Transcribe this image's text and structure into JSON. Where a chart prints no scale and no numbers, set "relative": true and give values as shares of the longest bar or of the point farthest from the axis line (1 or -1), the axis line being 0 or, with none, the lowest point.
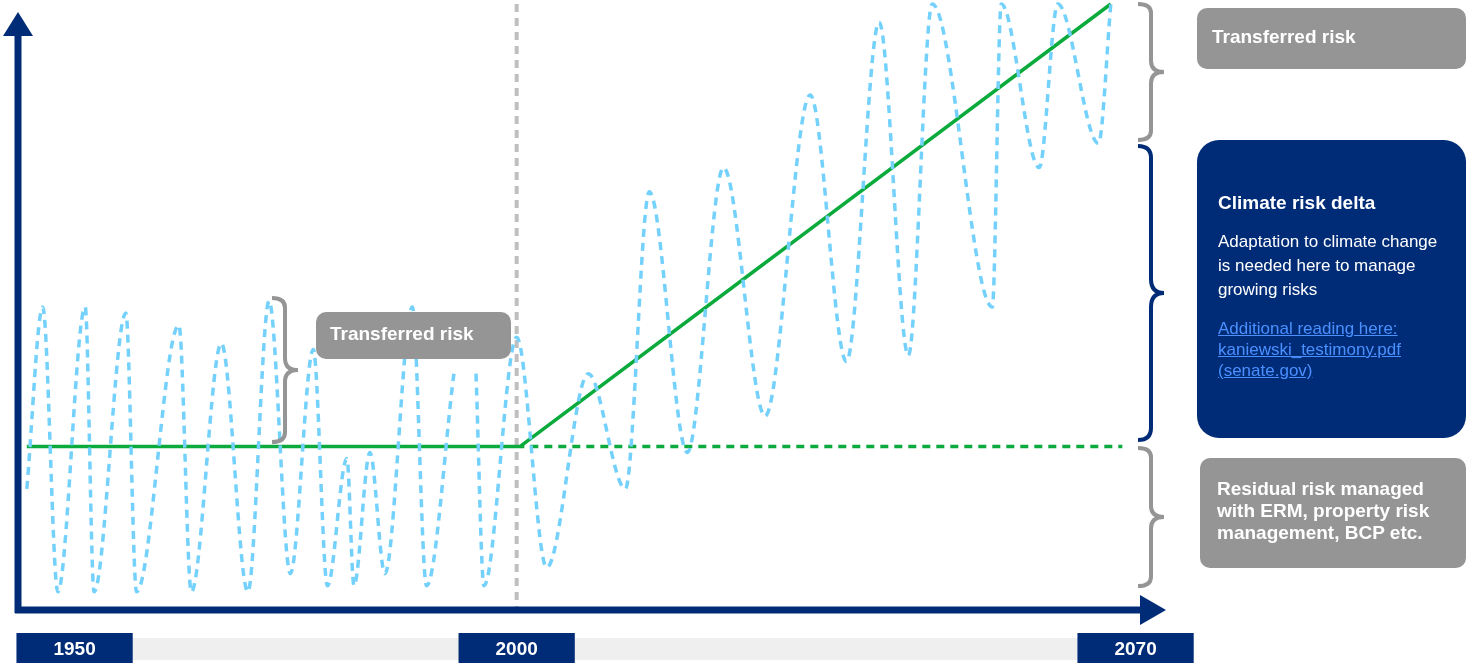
{
  "chart_data": {
    "type": "line",
    "relative": true,
    "xlim": [
      1943.6,
      2070.5
    ],
    "xticks": [
      1950,
      2000,
      2070
    ],
    "grid": false,
    "legend": false,
    "marker": "none",
    "series": [
      {
        "color": "#74d1fb",
        "line_style": "dashed",
        "x": [
          1944.6,
          1946.4,
          1948.1,
          1951.2,
          1952.2,
          1955.8,
          1957.0,
          1961.8,
          1963.2,
          1966.6,
          1969.6,
          1972.0,
          1974.4,
          1977.0,
          1978.6,
          1980.8,
          1981.6,
          1983.4,
          1985.1,
          1988.2,
          1989.8,
          1992.9,
          1994.5,
          1995.4,
          1996.3,
          2000.0,
          2003.4,
          2008.1,
          2012.3,
          2015.0,
          2019.3,
          2023.4,
          2028.1,
          2033.2,
          2037.3,
          2041.0,
          2044.3,
          2047.0,
          2053.8,
          2054.8,
          2059.1,
          2061.2,
          2065.8,
          2067.2
        ],
        "values": [
          0.2,
          0.5,
          0.03,
          0.5,
          0.03,
          0.49,
          0.03,
          0.47,
          0.03,
          0.44,
          0.03,
          0.51,
          0.06,
          0.43,
          0.04,
          0.25,
          0.04,
          0.26,
          0.06,
          0.5,
          0.04,
          0.39,
          null,
          0.39,
          0.04,
          0.45,
          0.07,
          0.39,
          0.2,
          0.69,
          0.26,
          0.73,
          0.32,
          0.85,
          0.41,
          0.97,
          0.42,
          1,
          0.5,
          1,
          0.73,
          1,
          0.77,
          1
        ]
      },
      {
        "color": "#0aaa3c",
        "line_style": "solid",
        "x": [
          1944.6,
          2000.4,
          2067.2
        ],
        "values": [
          0.27,
          0.27,
          1
        ]
      },
      {
        "color": "#0aaa3c",
        "line_style": "dashed",
        "x": [
          2000.4,
          2068.5
        ],
        "values": [
          0.27,
          0.27
        ]
      }
    ],
    "ref_lines": [
      {
        "axis": "x",
        "value": 2000,
        "color": "#bfbfbf",
        "line_style": "dashed"
      }
    ],
    "annotations": [
      "Transferred risk",
      "Transferred risk",
      "Climate risk delta",
      "Adaptation to climate change is needed here to manage growing risks",
      "Additional reading here: kaniewski_testimony.pdf (senate.gov)",
      "Residual risk managed with ERM, property risk management, BCP etc."
    ]
  }
}
